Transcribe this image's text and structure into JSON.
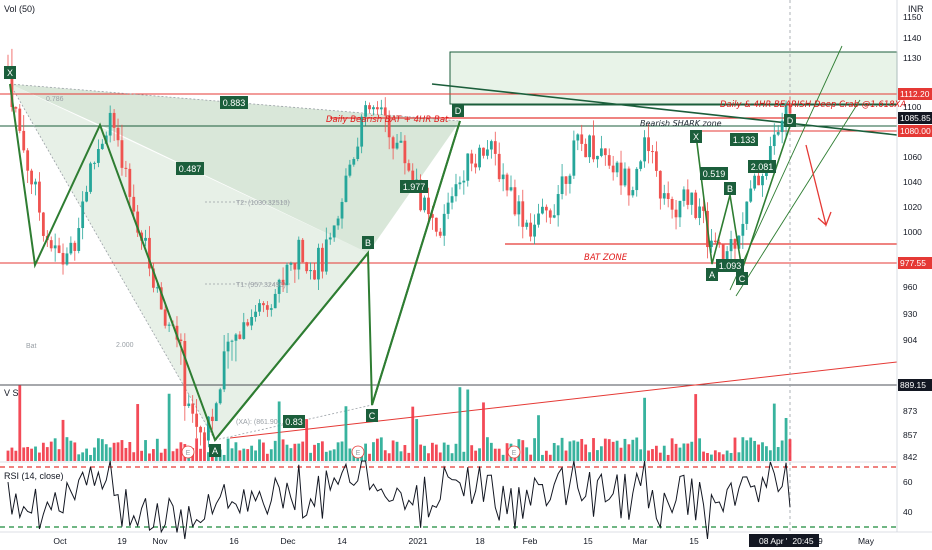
{
  "chart_data": {
    "type": "candlestick",
    "currency": "INR",
    "panes": {
      "volume": {
        "label": "Vol (50)"
      },
      "rsi": {
        "label": "RSI (14, close)",
        "ticks": [
          60,
          40
        ],
        "levels": [
          70,
          30
        ]
      }
    },
    "price_axis_ticks": [
      1150,
      1140,
      1130,
      1100,
      1080,
      1060,
      1040,
      1020,
      1000,
      960,
      930,
      904,
      873,
      857,
      842
    ],
    "price_axis_badges": [
      {
        "value": "1112.20",
        "color": "#e53935"
      },
      {
        "value": "1085.85",
        "color": "#131722"
      },
      {
        "value": "1080.00",
        "color": "#e53935"
      },
      {
        "value": "977.55",
        "color": "#e53935"
      },
      {
        "value": "889.15",
        "color": "#131722"
      }
    ],
    "time_axis": [
      "Oct",
      "19",
      "Nov",
      "16",
      "Dec",
      "14",
      "2021",
      "18",
      "Feb",
      "15",
      "Mar",
      "15",
      "08 Apr '21",
      "20:45",
      "19",
      "May"
    ],
    "price_series_sample": [
      1126,
      1080,
      1045,
      1010,
      985,
      978,
      1000,
      1040,
      1068,
      1092,
      1052,
      1020,
      990,
      960,
      925,
      900,
      875,
      860,
      872,
      888,
      905,
      925,
      938,
      945,
      960,
      975,
      988,
      975,
      982,
      998,
      1050,
      1082,
      1098,
      1090,
      1075,
      1060,
      1040,
      1010,
      990,
      1030,
      1050,
      1060,
      1070,
      1058,
      1040,
      1020,
      1005,
      1008,
      1020,
      1045,
      1065,
      1070,
      1068,
      1060,
      1045,
      1040,
      1070,
      1050,
      1022,
      1012,
      1032,
      1015,
      992,
      978,
      995,
      1015,
      1040,
      1058,
      1082,
      1096
    ],
    "pattern_points": {
      "bat": [
        {
          "label": "X",
          "price": 1126
        },
        {
          "label": "A",
          "price": 857
        },
        {
          "label": "B",
          "price": 975
        },
        {
          "label": "C",
          "price": 880
        },
        {
          "label": "D",
          "price": 1095
        }
      ],
      "crab": [
        {
          "label": "X",
          "price": 1070
        },
        {
          "label": "A",
          "price": 977
        },
        {
          "label": "B",
          "price": 1030
        },
        {
          "label": "C",
          "price": 975
        },
        {
          "label": "D",
          "price": 1090
        }
      ]
    },
    "ratio_labels": [
      "0.883",
      "0.487",
      "1.977",
      "0.83",
      "1.133",
      "0.519",
      "2.081",
      "1.093"
    ],
    "annotations": {
      "bat_title": "Daily Bearish BAT + 4HR Bat",
      "crab_title": "Daily & 4HR BEARISH Deep Crab @1.618XA",
      "shark": "Bearish SHARK zone",
      "bat_zone": "BAT ZONE",
      "t1": "T1: (957.32490)",
      "t2": "T2: (1030.32510)",
      "xa": "(XA): (861.90...",
      "ratio_2": "2.000",
      "ratio_786": "0.786",
      "bat_small": "Bat",
      "pane_small": "V S",
      "e_markers": [
        "E",
        "E",
        "E"
      ]
    }
  }
}
